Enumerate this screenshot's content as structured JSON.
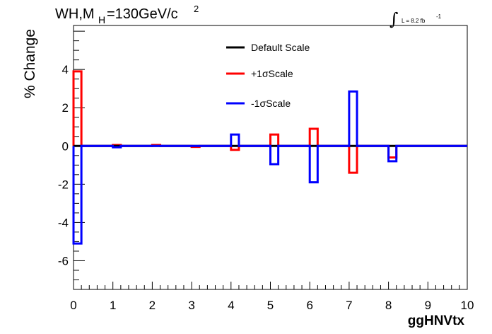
{
  "chart_data": {
    "type": "line",
    "title_text": "WH,M",
    "title_sub": "H",
    "title_rest": "=130GeV/c",
    "title_sup": "2",
    "lumi_label": "L = 8.2 fb",
    "lumi_sup": "-1",
    "integral_symbol": "∫",
    "xlabel": "ggHNVtx",
    "ylabel": "% Change",
    "xlim": [
      0,
      10
    ],
    "ylim": [
      -7.5,
      6.3
    ],
    "x_ticks": [
      "0",
      "1",
      "2",
      "3",
      "4",
      "5",
      "6",
      "7",
      "8",
      "9",
      "10"
    ],
    "y_ticks": [
      "-6",
      "-4",
      "-2",
      "0",
      "2",
      "4"
    ],
    "grid": false,
    "legend_position": "top-center",
    "bin_edges": [
      0,
      0.2,
      1,
      1.2,
      2,
      2.2,
      3,
      3.2,
      4,
      4.2,
      5,
      5.2,
      6,
      6.2,
      7,
      7.2,
      8,
      8.2,
      10
    ],
    "series": [
      {
        "name": "Default Scale",
        "color": "#000000",
        "values": [
          0,
          0,
          0,
          0,
          0,
          0,
          0,
          0,
          0,
          0,
          0,
          0,
          0,
          0,
          0,
          0,
          0,
          0
        ]
      },
      {
        "name": "+1σScale",
        "color": "#ff0000",
        "values": [
          3.9,
          0,
          0.05,
          0,
          0.05,
          0,
          -0.05,
          0,
          -0.2,
          0,
          0.6,
          0,
          0.9,
          0,
          -1.4,
          0,
          -0.6,
          0
        ]
      },
      {
        "name": "-1σScale",
        "color": "#0000ff",
        "values": [
          -5.1,
          0,
          -0.07,
          0,
          0,
          0,
          0,
          0,
          0.6,
          0,
          -0.95,
          0,
          -1.9,
          0,
          2.85,
          0,
          -0.8,
          0
        ]
      }
    ]
  }
}
